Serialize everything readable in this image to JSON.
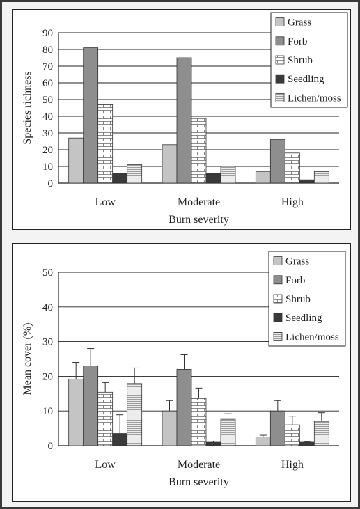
{
  "colors": {
    "grass": "#c4c4c4",
    "forb": "#8e8e8e",
    "shrub": "#ffffff",
    "seedling": "#3a3a3a",
    "lichen_moss": "#ececec",
    "frame": "#3a3a3a",
    "background": "#f3f3f3"
  },
  "chart_data": [
    {
      "type": "bar",
      "categories": [
        "Low",
        "Moderate",
        "High"
      ],
      "xlabel": "Burn severity",
      "ylabel": "Species richness",
      "ylim": [
        0,
        90
      ],
      "yticks": [
        "0",
        "10",
        "20",
        "30",
        "40",
        "50",
        "60",
        "70",
        "80",
        "90"
      ],
      "grid": true,
      "legend_position": "top-right",
      "series": [
        {
          "name": "Grass",
          "values": [
            27,
            23,
            7
          ]
        },
        {
          "name": "Forb",
          "values": [
            81,
            75,
            26
          ]
        },
        {
          "name": "Shrub",
          "values": [
            47,
            39,
            18
          ]
        },
        {
          "name": "Seedling",
          "values": [
            6,
            6,
            2
          ]
        },
        {
          "name": "Lichen/moss",
          "values": [
            11,
            10,
            7
          ]
        }
      ]
    },
    {
      "type": "bar",
      "categories": [
        "Low",
        "Moderate",
        "High"
      ],
      "xlabel": "Burn severity",
      "ylabel": "Mean cover (%)",
      "ylim": [
        0,
        50
      ],
      "yticks": [
        "0",
        "10",
        "20",
        "30",
        "40",
        "50"
      ],
      "grid": true,
      "legend_position": "top-right",
      "series": [
        {
          "name": "Grass",
          "values": [
            19.2,
            10.0,
            2.5
          ],
          "error": [
            4.8,
            3.0,
            0.5
          ]
        },
        {
          "name": "Forb",
          "values": [
            23.0,
            22.0,
            10.0
          ],
          "error": [
            5.0,
            4.2,
            3.0
          ]
        },
        {
          "name": "Shrub",
          "values": [
            15.4,
            13.6,
            6.0
          ],
          "error": [
            2.8,
            3.0,
            2.5
          ]
        },
        {
          "name": "Seedling",
          "values": [
            3.5,
            1.0,
            1.0
          ],
          "error": [
            5.4,
            0.3,
            0.2
          ]
        },
        {
          "name": "Lichen/moss",
          "values": [
            17.9,
            7.6,
            7.0
          ],
          "error": [
            4.5,
            1.6,
            2.5
          ]
        }
      ]
    }
  ]
}
